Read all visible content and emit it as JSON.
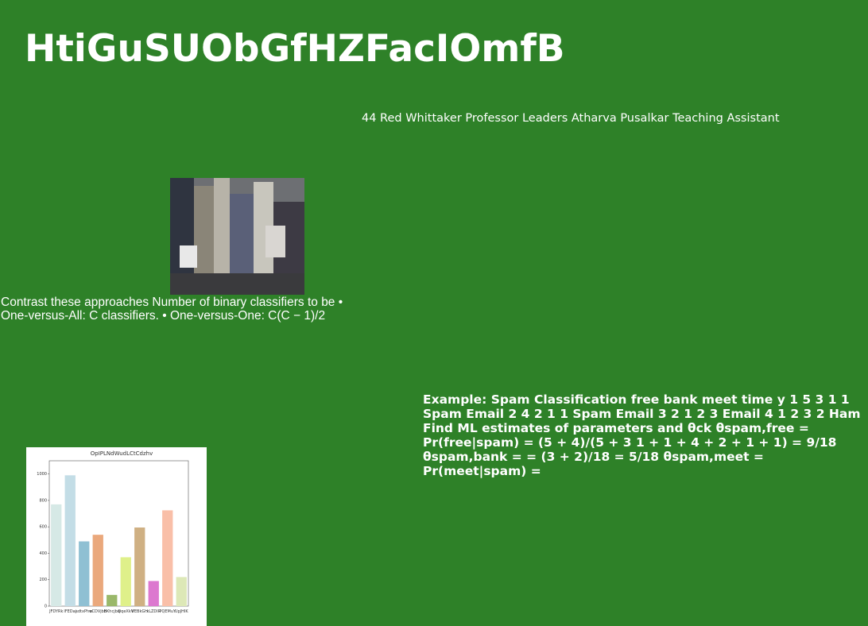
{
  "header": {
    "title": "HtiGuSUObGfHZFacIOmfB",
    "subtitle": "44 Red Whittaker Professor Leaders Atharva Pusalkar Teaching Assistant"
  },
  "paragraph": "Contrast these approaches Number of binary classifiers to be • One-versus-All: C classifiers. • One-versus-One: C(C − 1)/2",
  "example": "Example: Spam Classification free bank meet time y 1 5 3 1 1 Spam Email 2 4 2 1 1 Spam Email 3 2 1 2 3 Email 4 1 2 3 2 Ham Find ML estimates of parameters and θck θspam,free = Pr(free|spam) = (5 + 4)/(5 + 3 1 + 1 + 4 + 2 + 1 + 1) = 9/18 θspam,bank = = (3 + 2)/18 = 5/18 θspam,meet = Pr(meet|spam) =",
  "chart_data": {
    "type": "bar",
    "title": "OpIPLNdWudLCtCdzhv",
    "categories": [
      "JFDYRk",
      "lFEDaj",
      "sdtxPhw",
      "oCDVjbb",
      "BKhcjbq",
      "DqeXkV",
      "VEBkGH",
      "xLZDIR",
      "PQEMuY",
      "UpJHIK"
    ],
    "values": [
      770,
      990,
      490,
      540,
      85,
      370,
      595,
      190,
      725,
      220
    ],
    "colors": [
      "#d6e9e6",
      "#c3dde6",
      "#8fc0d3",
      "#eaa87c",
      "#9ab86a",
      "#dff08a",
      "#cfb083",
      "#dc78cf",
      "#f9bfa8",
      "#dde8b7"
    ],
    "ylim": [
      0,
      1100
    ],
    "yticks": [
      0,
      200,
      400,
      600,
      800,
      1000
    ]
  }
}
